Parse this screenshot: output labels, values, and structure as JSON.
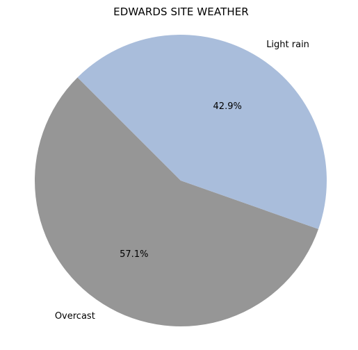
{
  "chart_data": {
    "type": "pie",
    "title": "EDWARDS SITE WEATHER",
    "slices": [
      {
        "label": "Overcast",
        "value": 57.1,
        "pct_label": "57.1%",
        "color": "#969696"
      },
      {
        "label": "Light rain",
        "value": 42.9,
        "pct_label": "42.9%",
        "color": "#a9bddb"
      }
    ],
    "start_angle_deg": 135,
    "direction": "counterclockwise"
  }
}
